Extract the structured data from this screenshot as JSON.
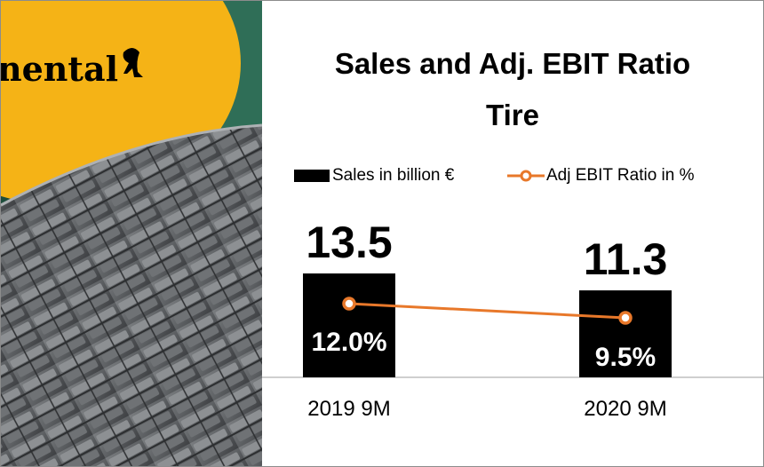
{
  "title_line1": "Sales and Adj. EBIT Ratio",
  "title_line2": "Tire",
  "photo_brand_text": "nental",
  "colors": {
    "bar": "#000000",
    "line": "#e8782a",
    "photo_yellow": "#f5b316",
    "tire": "#5e6164"
  },
  "chart_data": {
    "type": "bar",
    "categories": [
      "2019 9M",
      "2020 9M"
    ],
    "series": [
      {
        "name": "Sales in billion €",
        "type": "bar",
        "values": [
          13.5,
          11.3
        ],
        "labels": [
          "13.5",
          "11.3"
        ]
      },
      {
        "name": "Adj EBIT Ratio in %",
        "type": "line",
        "values": [
          12.0,
          9.5
        ],
        "labels": [
          "12.0%",
          "9.5%"
        ]
      }
    ],
    "legend_position": "top",
    "grid": false
  }
}
